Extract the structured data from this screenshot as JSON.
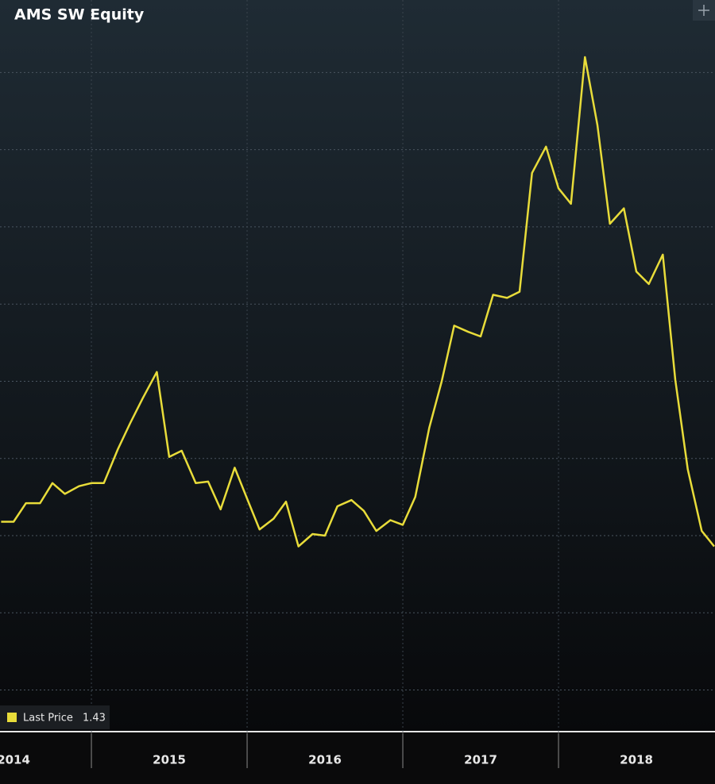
{
  "chart_data": {
    "type": "line",
    "title": "AMS SW Equity",
    "x": [
      2014.42,
      2014.5,
      2014.58,
      2014.67,
      2014.75,
      2014.83,
      2014.92,
      2015,
      2015.08,
      2015.17,
      2015.25,
      2015.33,
      2015.42,
      2015.5,
      2015.58,
      2015.67,
      2015.75,
      2015.83,
      2015.92,
      2016,
      2016.08,
      2016.17,
      2016.25,
      2016.33,
      2016.42,
      2016.5,
      2016.58,
      2016.67,
      2016.75,
      2016.83,
      2016.92,
      2017,
      2017.08,
      2017.17,
      2017.25,
      2017.33,
      2017.42,
      2017.5,
      2017.58,
      2017.67,
      2017.75,
      2017.83,
      2017.92,
      2018,
      2018.08,
      2018.17,
      2018.25,
      2018.33,
      2018.42,
      2018.5,
      2018.58,
      2018.67,
      2018.75,
      2018.83,
      2018.92,
      2019
    ],
    "series": [
      {
        "name": "Last Price",
        "color": "#e8dc3a",
        "values": [
          1.59,
          1.59,
          1.71,
          1.71,
          1.84,
          1.77,
          1.82,
          1.84,
          1.84,
          2.06,
          2.23,
          2.39,
          2.56,
          2.01,
          2.05,
          1.84,
          1.85,
          1.67,
          1.94,
          1.74,
          1.54,
          1.61,
          1.72,
          1.43,
          1.51,
          1.5,
          1.69,
          1.73,
          1.66,
          1.53,
          1.6,
          1.57,
          1.75,
          2.2,
          2.5,
          2.86,
          2.82,
          2.79,
          3.06,
          3.04,
          3.08,
          3.85,
          4.02,
          3.75,
          3.65,
          4.6,
          4.16,
          3.52,
          3.62,
          3.21,
          3.13,
          3.32,
          2.51,
          1.93,
          1.53,
          1.43
        ]
      }
    ],
    "xlim": [
      2014.413,
      2019.005
    ],
    "xticks": [
      {
        "value": 2014.5,
        "label": "2014"
      },
      {
        "value": 2015.5,
        "label": "2015"
      },
      {
        "value": 2016.5,
        "label": "2016"
      },
      {
        "value": 2017.5,
        "label": "2017"
      },
      {
        "value": 2018.5,
        "label": "2018"
      }
    ],
    "ylim": [
      0.23,
      4.97
    ],
    "yticks": [
      0.5,
      1,
      1.5,
      2,
      2.5,
      3,
      3.5,
      4,
      4.5
    ],
    "grid": true
  }
}
